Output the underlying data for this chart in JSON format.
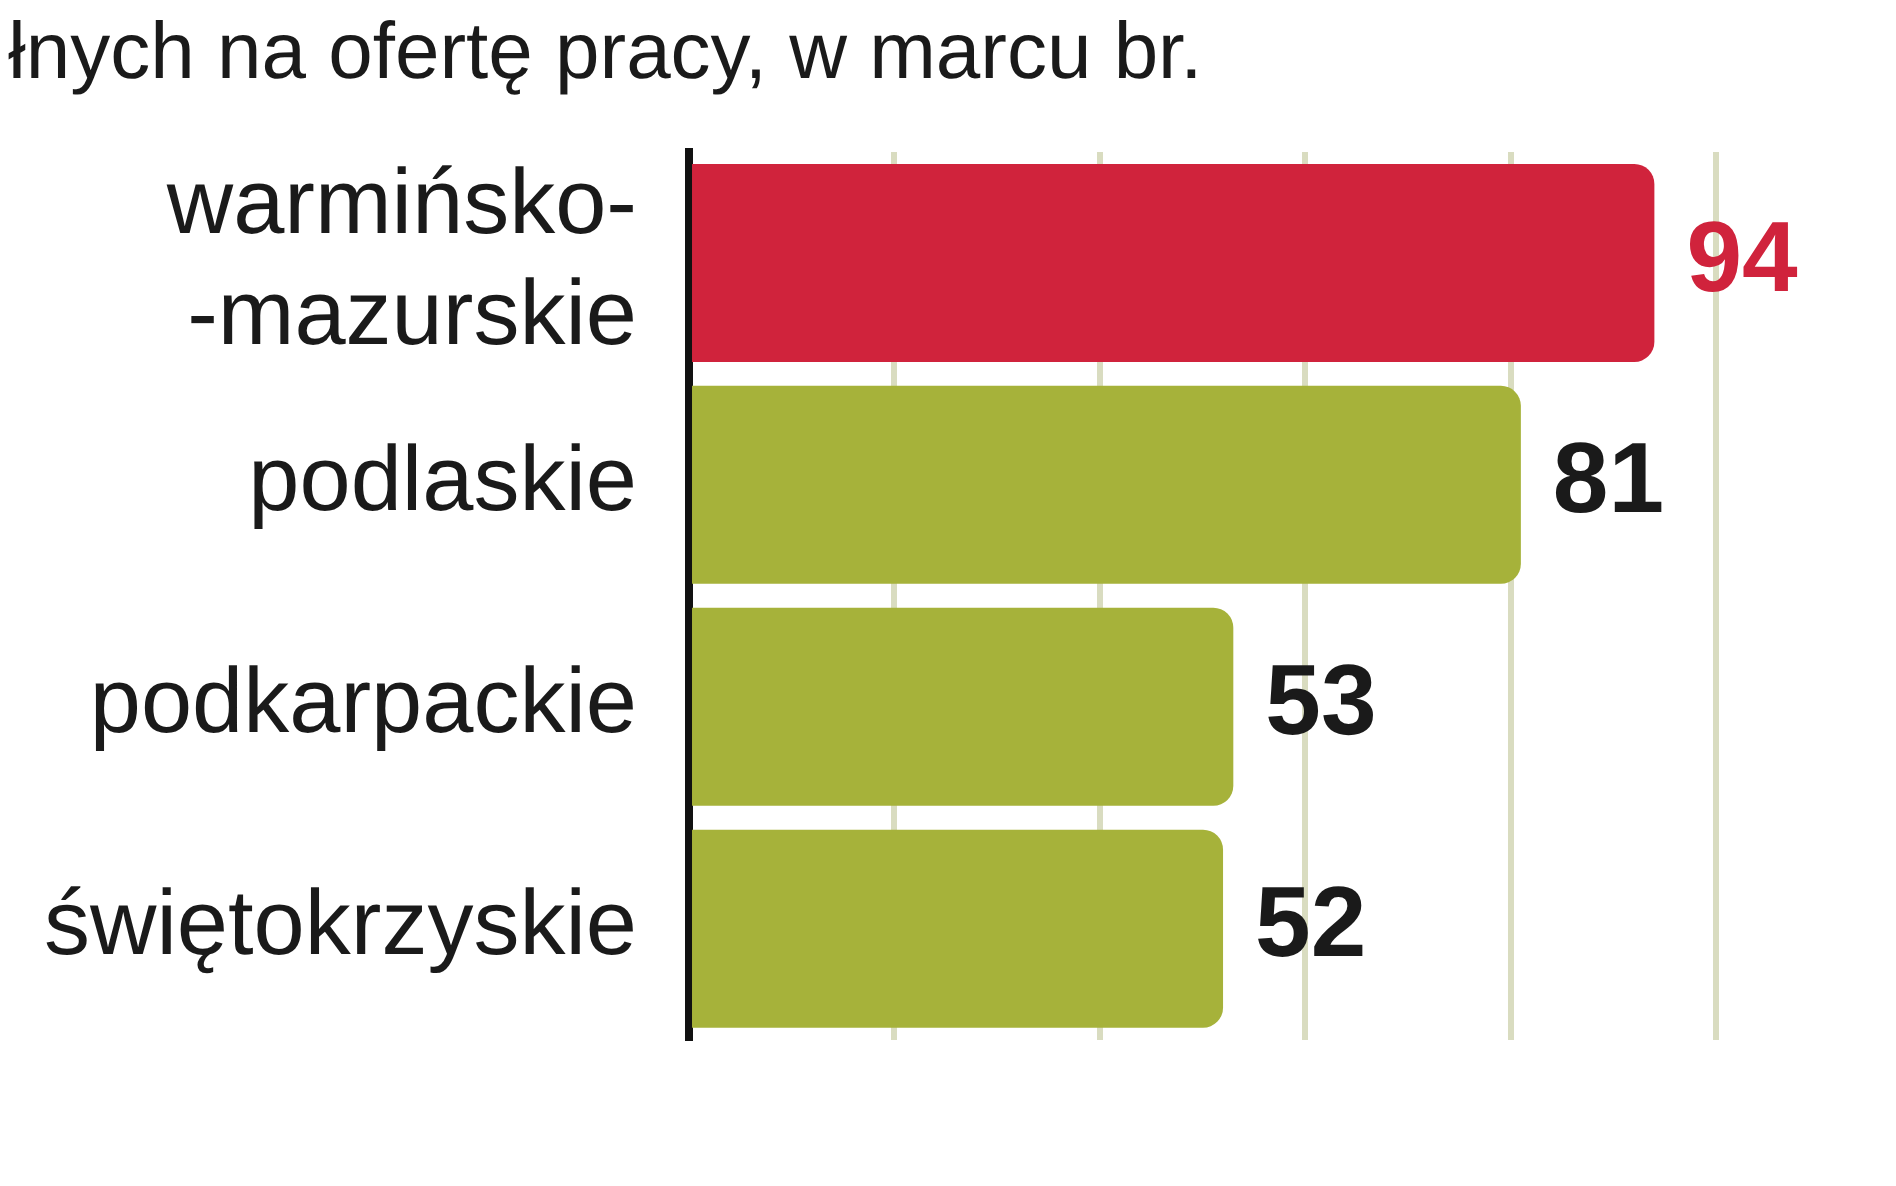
{
  "chart_data": {
    "type": "bar",
    "orientation": "horizontal",
    "title": "łnych na ofertę pracy, w marcu br.",
    "categories": [
      "warmińsko-\n-mazurskie",
      "podlaskie",
      "podkarpackie",
      "świętokrzyskie"
    ],
    "values": [
      94,
      81,
      53,
      52
    ],
    "colors": [
      "#d0233c",
      "#a6b23a",
      "#a6b23a",
      "#a6b23a"
    ],
    "xlim": [
      0,
      100
    ],
    "xticks": [
      {
        "value": 0,
        "label": null
      },
      {
        "value": 20,
        "label": null
      },
      {
        "value": 40,
        "label": null
      },
      {
        "value": 60,
        "label": null
      },
      {
        "value": 80,
        "label": null
      },
      {
        "value": 100,
        "label": null
      }
    ],
    "grid": "x",
    "data_labels": true
  }
}
